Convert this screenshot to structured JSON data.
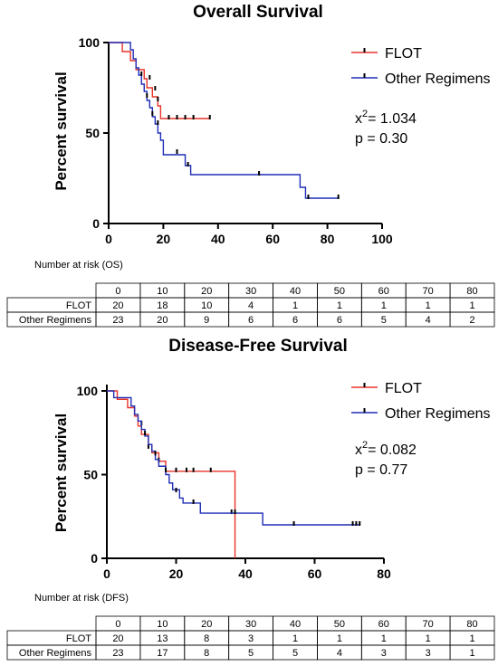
{
  "chart_data": [
    {
      "type": "line",
      "subtype": "kaplan-meier",
      "title": "Overall Survival",
      "ylabel": "Percent survival",
      "xlim": [
        0,
        100
      ],
      "ylim": [
        0,
        100
      ],
      "x_ticks": [
        "0",
        "20",
        "40",
        "60",
        "80",
        "100"
      ],
      "y_ticks": [
        "0",
        "50",
        "100"
      ],
      "series": [
        {
          "name": "FLOT",
          "color": "#e8332a",
          "steps": [
            [
              0,
              100
            ],
            [
              5,
              95
            ],
            [
              8,
              90
            ],
            [
              10,
              85
            ],
            [
              13,
              80
            ],
            [
              14,
              75
            ],
            [
              16,
              70
            ],
            [
              18,
              65
            ],
            [
              19,
              58
            ],
            [
              37,
              58
            ]
          ],
          "censors": [
            [
              15,
              80
            ],
            [
              17,
              74
            ],
            [
              18,
              68
            ],
            [
              22,
              58
            ],
            [
              25,
              58
            ],
            [
              28,
              58
            ],
            [
              31,
              58
            ],
            [
              37,
              58
            ]
          ]
        },
        {
          "name": "Other Regimens",
          "color": "#1f2eb5",
          "steps": [
            [
              0,
              100
            ],
            [
              8,
              96
            ],
            [
              9,
              91
            ],
            [
              10,
              86
            ],
            [
              11,
              82
            ],
            [
              12,
              77
            ],
            [
              13,
              73
            ],
            [
              14,
              68
            ],
            [
              15,
              64
            ],
            [
              16,
              59
            ],
            [
              17,
              55
            ],
            [
              18,
              50
            ],
            [
              19,
              46
            ],
            [
              20,
              38
            ],
            [
              28,
              32
            ],
            [
              30,
              27
            ],
            [
              68,
              27
            ],
            [
              70,
              20
            ],
            [
              72,
              14
            ],
            [
              84,
              14
            ]
          ],
          "censors": [
            [
              12,
              82
            ],
            [
              14,
              70
            ],
            [
              16,
              60
            ],
            [
              18,
              55
            ],
            [
              25,
              39
            ],
            [
              29,
              32
            ],
            [
              55,
              27
            ],
            [
              73,
              14
            ],
            [
              84,
              14
            ]
          ]
        }
      ],
      "stats": {
        "chi_label": "x",
        "chi_sup": "2",
        "chi_value": "= 1.034",
        "p": "p = 0.30"
      },
      "risk_title": "Number at risk (OS)",
      "risk_table": {
        "times": [
          "0",
          "10",
          "20",
          "30",
          "40",
          "50",
          "60",
          "70",
          "80"
        ],
        "rows": [
          {
            "label": "FLOT",
            "values": [
              "20",
              "18",
              "10",
              "4",
              "1",
              "1",
              "1",
              "1",
              "1"
            ]
          },
          {
            "label": "Other Regimens",
            "values": [
              "23",
              "20",
              "9",
              "6",
              "6",
              "6",
              "5",
              "4",
              "2"
            ]
          }
        ]
      }
    },
    {
      "type": "line",
      "subtype": "kaplan-meier",
      "title": "Disease-Free Survival",
      "ylabel": "Percent survival",
      "xlim": [
        0,
        80
      ],
      "ylim": [
        0,
        100
      ],
      "x_ticks": [
        "0",
        "20",
        "40",
        "60",
        "80"
      ],
      "y_ticks": [
        "0",
        "50",
        "100"
      ],
      "series": [
        {
          "name": "FLOT",
          "color": "#e8332a",
          "steps": [
            [
              0,
              100
            ],
            [
              3,
              95
            ],
            [
              6,
              90
            ],
            [
              8,
              85
            ],
            [
              9,
              79
            ],
            [
              10,
              74
            ],
            [
              12,
              68
            ],
            [
              13,
              63
            ],
            [
              15,
              58
            ],
            [
              17,
              52
            ],
            [
              36,
              52
            ],
            [
              37,
              0
            ]
          ],
          "censors": [
            [
              10,
              80
            ],
            [
              12,
              66
            ],
            [
              15,
              58
            ],
            [
              20,
              52
            ],
            [
              23,
              52
            ],
            [
              25,
              52
            ],
            [
              30,
              52
            ],
            [
              36,
              27
            ]
          ]
        },
        {
          "name": "Other Regimens",
          "color": "#1f2eb5",
          "steps": [
            [
              0,
              100
            ],
            [
              2,
              96
            ],
            [
              7,
              91
            ],
            [
              8,
              86
            ],
            [
              9,
              82
            ],
            [
              10,
              77
            ],
            [
              11,
              73
            ],
            [
              12,
              68
            ],
            [
              13,
              64
            ],
            [
              14,
              59
            ],
            [
              15,
              55
            ],
            [
              17,
              50
            ],
            [
              18,
              45
            ],
            [
              19,
              41
            ],
            [
              21,
              36
            ],
            [
              22,
              33
            ],
            [
              27,
              27
            ],
            [
              44,
              27
            ],
            [
              45,
              20
            ],
            [
              73,
              20
            ]
          ],
          "censors": [
            [
              11,
              74
            ],
            [
              14,
              62
            ],
            [
              17,
              52
            ],
            [
              20,
              40
            ],
            [
              25,
              33
            ],
            [
              37,
              27
            ],
            [
              54,
              20
            ],
            [
              71,
              20
            ],
            [
              72,
              20
            ],
            [
              73,
              20
            ]
          ]
        }
      ],
      "stats": {
        "chi_label": "x",
        "chi_sup": "2",
        "chi_value": "= 0.082",
        "p": "p = 0.77"
      },
      "risk_title": "Number at risk (DFS)",
      "risk_table": {
        "times": [
          "0",
          "10",
          "20",
          "30",
          "40",
          "50",
          "60",
          "70",
          "80"
        ],
        "rows": [
          {
            "label": "FLOT",
            "values": [
              "20",
              "13",
              "8",
              "3",
              "1",
              "1",
              "1",
              "1",
              "1"
            ]
          },
          {
            "label": "Other Regimens",
            "values": [
              "23",
              "17",
              "8",
              "5",
              "5",
              "4",
              "3",
              "3",
              "1"
            ]
          }
        ]
      }
    }
  ]
}
